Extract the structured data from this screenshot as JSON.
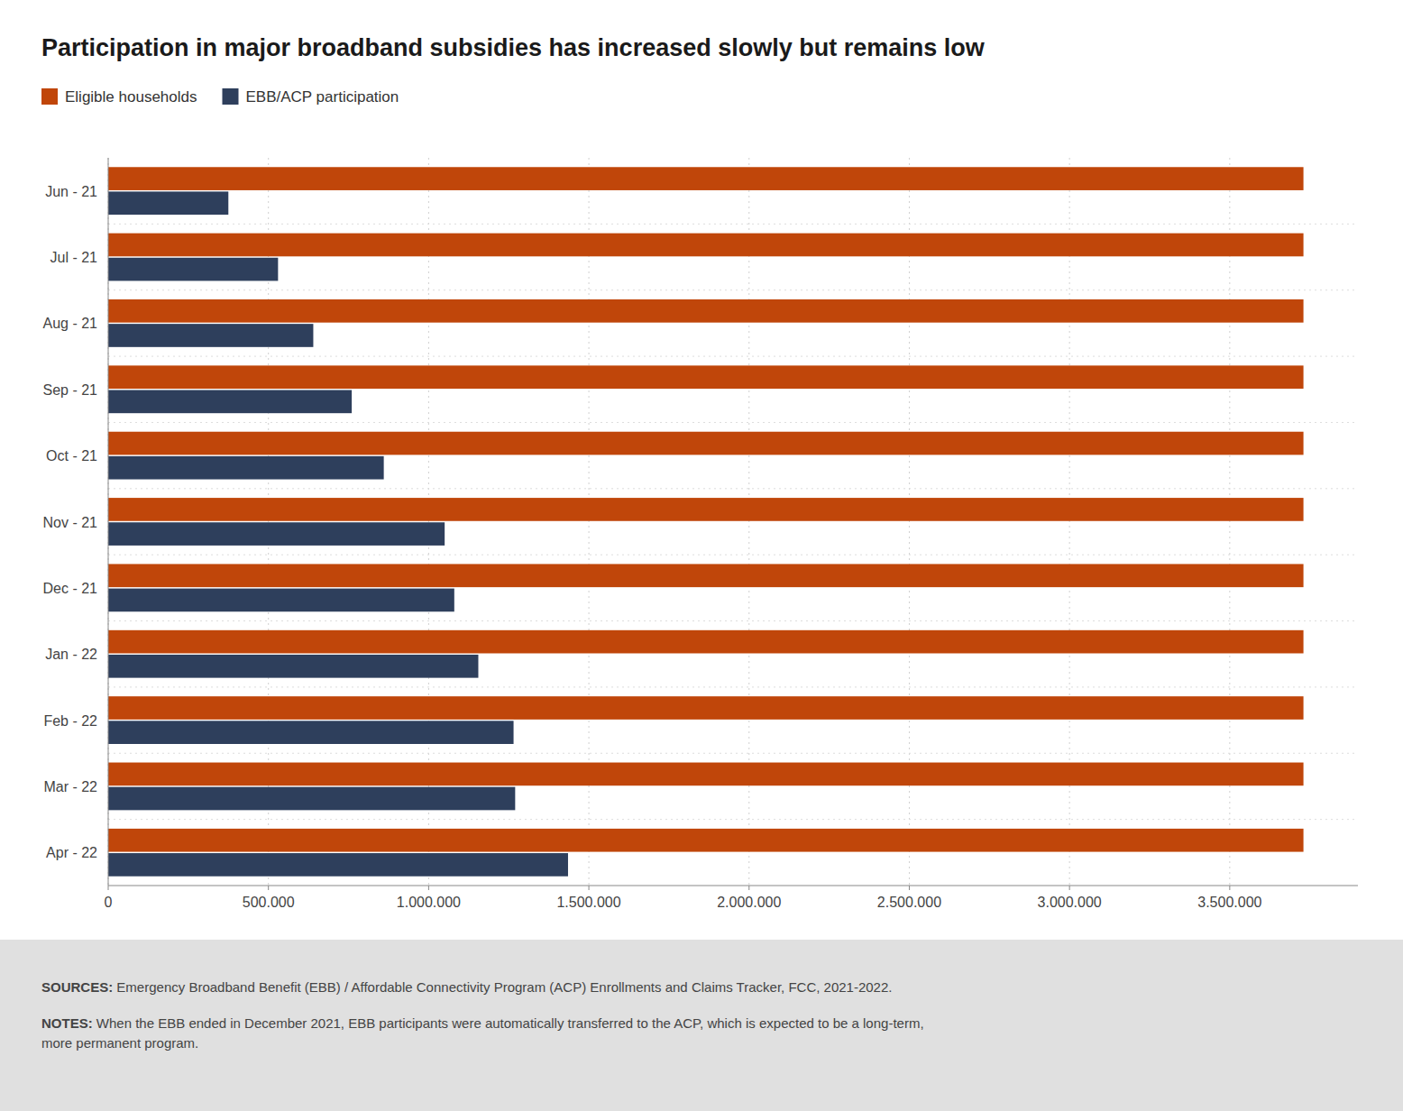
{
  "chart_data": {
    "type": "bar",
    "orientation": "horizontal",
    "title": "Participation in major broadband subsidies has increased slowly but remains low",
    "categories": [
      "Jun - 21",
      "Jul - 21",
      "Aug - 21",
      "Sep - 21",
      "Oct - 21",
      "Nov - 21",
      "Dec - 21",
      "Jan - 22",
      "Feb - 22",
      "Mar - 22",
      "Apr - 22"
    ],
    "series": [
      {
        "name": "Eligible households",
        "color": "#C0460A",
        "values": [
          3730000,
          3730000,
          3730000,
          3730000,
          3730000,
          3730000,
          3730000,
          3730000,
          3730000,
          3730000,
          3730000
        ]
      },
      {
        "name": "EBB/ACP participation",
        "color": "#2E3F5C",
        "values": [
          375000,
          530000,
          640000,
          760000,
          860000,
          1050000,
          1080000,
          1155000,
          1265000,
          1270000,
          1435000
        ]
      }
    ],
    "xlim": [
      0,
      3900000
    ],
    "xticks": [
      0,
      {
        "value": 500000,
        "label": "500.000"
      },
      {
        "value": 1000000,
        "label": "1.000.000"
      },
      {
        "value": 1500000,
        "label": "1.500.000"
      },
      {
        "value": 2000000,
        "label": "2.000.000"
      },
      {
        "value": 2500000,
        "label": "2.500.000"
      },
      {
        "value": 3000000,
        "label": "3.000.000"
      },
      {
        "value": 3500000,
        "label": "3.500.000"
      }
    ],
    "grid": true,
    "legend": "upper left",
    "annotations": [
      "SOURCES:",
      " Emergency Broadband Benefit (EBB) / Affordable Connectivity Program (ACP) Enrollments and Claims Tracker, FCC, 2021-2022.",
      "NOTES:",
      " When the EBB ended in December 2021, EBB participants were automatically transferred to the ACP, which is expected to be a long-term,\nmore permanent program."
    ]
  }
}
